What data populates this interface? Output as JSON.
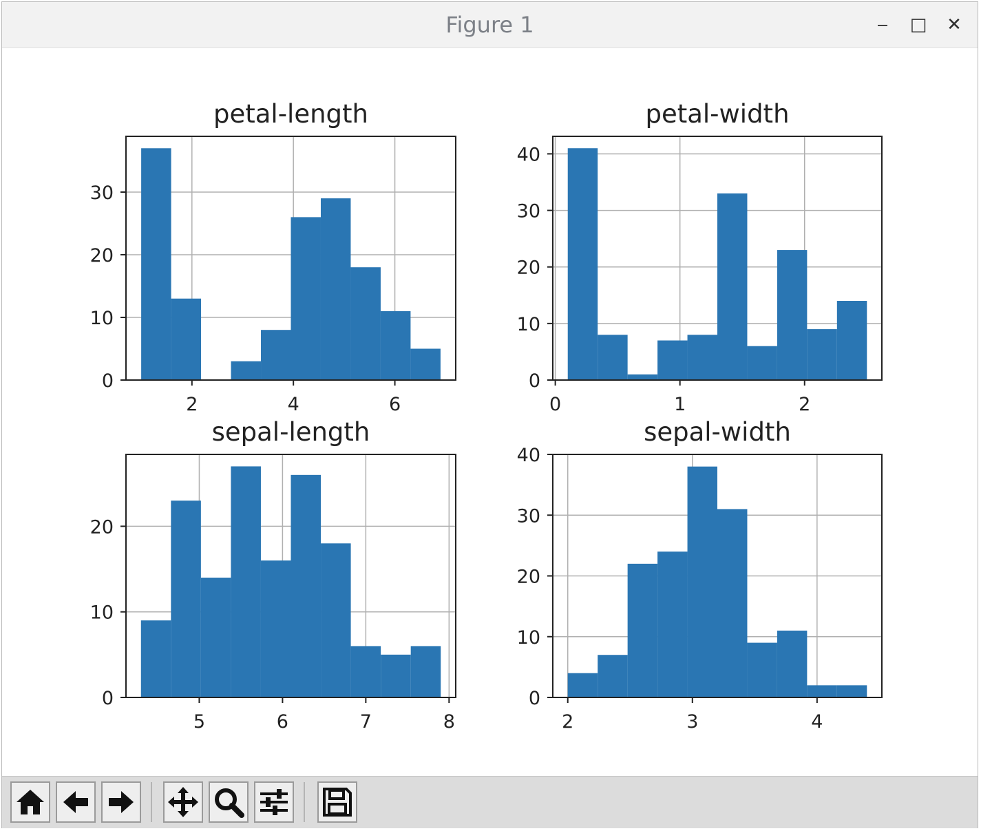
{
  "window": {
    "title": "Figure 1",
    "controls": {
      "minimize": "‒",
      "maximize": "□",
      "close": "✕"
    }
  },
  "toolbar": {
    "buttons": [
      {
        "name": "home-button",
        "icon": "home-icon"
      },
      {
        "name": "back-button",
        "icon": "arrow-left-icon"
      },
      {
        "name": "forward-button",
        "icon": "arrow-right-icon"
      },
      {
        "name": "pan-button",
        "icon": "move-icon"
      },
      {
        "name": "zoom-button",
        "icon": "magnifier-icon"
      },
      {
        "name": "configure-subplots-button",
        "icon": "sliders-icon"
      },
      {
        "name": "save-button",
        "icon": "floppy-disk-icon"
      }
    ]
  },
  "colors": {
    "bar": "#2a76b3",
    "grid": "#b0b0b0",
    "frame": "#222222"
  },
  "chart_data": [
    {
      "type": "bar",
      "title": "petal-length",
      "bin_edges": [
        1.0,
        1.59,
        2.18,
        2.77,
        3.36,
        3.95,
        4.54,
        5.13,
        5.72,
        6.31,
        6.9
      ],
      "values": [
        37,
        13,
        0,
        3,
        8,
        26,
        29,
        18,
        11,
        5
      ],
      "xlim": [
        0.7,
        7.2
      ],
      "ylim": [
        0,
        38.9
      ],
      "xticks": [
        2,
        4,
        6
      ],
      "yticks": [
        0,
        10,
        20,
        30
      ],
      "grid": true
    },
    {
      "type": "bar",
      "title": "petal-width",
      "bin_edges": [
        0.1,
        0.34,
        0.58,
        0.82,
        1.06,
        1.3,
        1.54,
        1.78,
        2.02,
        2.26,
        2.5
      ],
      "values": [
        41,
        8,
        1,
        7,
        8,
        33,
        6,
        23,
        9,
        14
      ],
      "xlim": [
        -0.02,
        2.62
      ],
      "ylim": [
        0,
        43.1
      ],
      "xticks": [
        0,
        1,
        2
      ],
      "yticks": [
        0,
        10,
        20,
        30,
        40
      ],
      "grid": true
    },
    {
      "type": "bar",
      "title": "sepal-length",
      "bin_edges": [
        4.3,
        4.66,
        5.02,
        5.38,
        5.74,
        6.1,
        6.46,
        6.82,
        7.18,
        7.54,
        7.9
      ],
      "values": [
        9,
        23,
        14,
        27,
        16,
        26,
        18,
        6,
        5,
        6
      ],
      "xlim": [
        4.12,
        8.08
      ],
      "ylim": [
        0,
        28.4
      ],
      "xticks": [
        5,
        6,
        7,
        8
      ],
      "yticks": [
        0,
        10,
        20
      ],
      "grid": true
    },
    {
      "type": "bar",
      "title": "sepal-width",
      "bin_edges": [
        2.0,
        2.24,
        2.48,
        2.72,
        2.96,
        3.2,
        3.44,
        3.68,
        3.92,
        4.16,
        4.4
      ],
      "values": [
        4,
        7,
        22,
        24,
        38,
        31,
        9,
        11,
        2,
        2
      ],
      "xlim": [
        1.88,
        4.52
      ],
      "ylim": [
        0,
        40.0
      ],
      "xticks": [
        2,
        3,
        4
      ],
      "yticks": [
        0,
        10,
        20,
        30,
        40
      ],
      "grid": true
    }
  ]
}
